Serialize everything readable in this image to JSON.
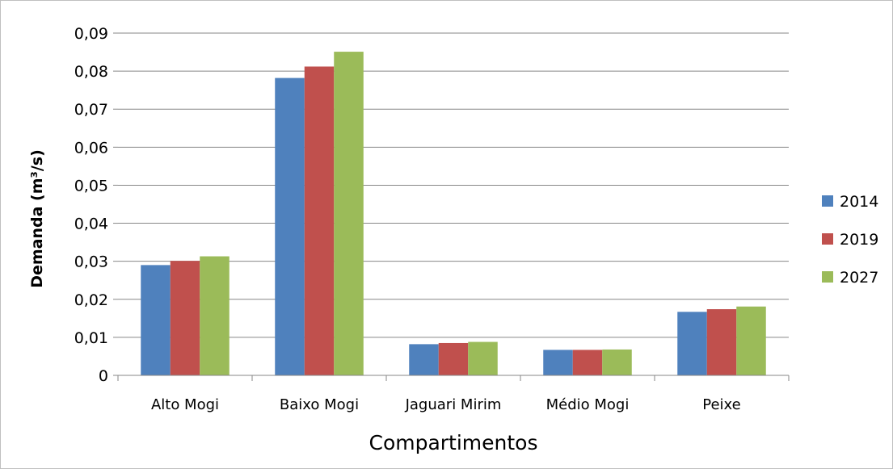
{
  "chart_data": {
    "type": "bar",
    "categories": [
      "Alto Mogi",
      "Baixo Mogi",
      "Jaguari Mirim",
      "Médio Mogi",
      "Peixe"
    ],
    "series": [
      {
        "name": "2014",
        "color": "#4f81bd",
        "values": [
          0.029,
          0.0782,
          0.0082,
          0.0067,
          0.0167
        ]
      },
      {
        "name": "2019",
        "color": "#c0504d",
        "values": [
          0.0301,
          0.0812,
          0.0085,
          0.0067,
          0.0174
        ]
      },
      {
        "name": "2027",
        "color": "#9bbb59",
        "values": [
          0.0313,
          0.0851,
          0.0088,
          0.0068,
          0.0181
        ]
      }
    ],
    "ylim": [
      0,
      0.09
    ],
    "yticks": [
      "0",
      "0,01",
      "0,02",
      "0,03",
      "0,04",
      "0,05",
      "0,06",
      "0,07",
      "0,08",
      "0,09"
    ],
    "xlabel": "Compartimentos",
    "ylabel": "Demanda (m³/s)",
    "grid": true,
    "legend_position": "right"
  }
}
